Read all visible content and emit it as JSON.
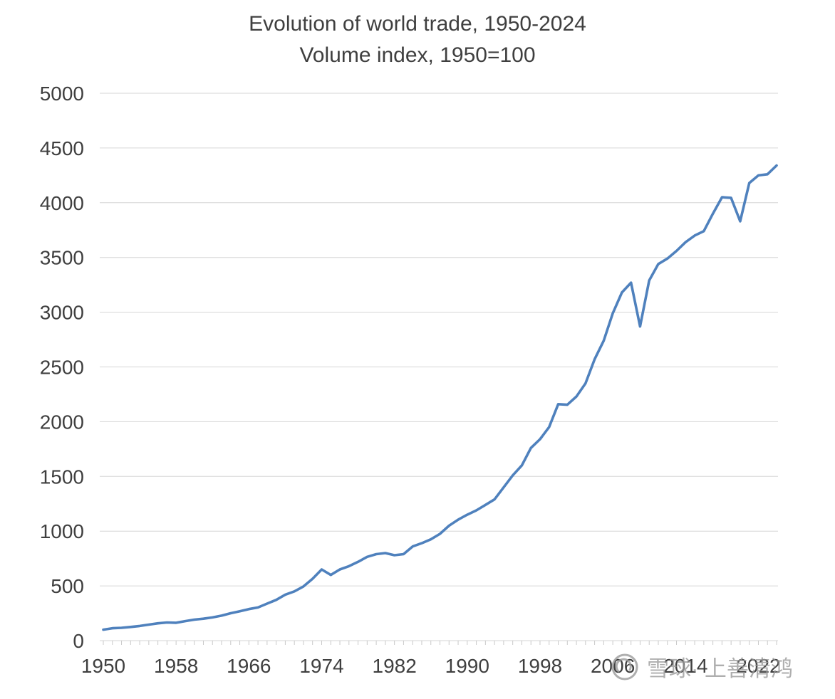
{
  "chart_data": {
    "type": "line",
    "title": "Evolution of world trade, 1950-2024",
    "subtitle": "Volume index, 1950=100",
    "xlabel": "",
    "ylabel": "",
    "ylim": [
      0,
      5000
    ],
    "y_ticks": [
      0,
      500,
      1000,
      1500,
      2000,
      2500,
      3000,
      3500,
      4000,
      4500,
      5000
    ],
    "x_tick_labels": [
      "1950",
      "1958",
      "1966",
      "1974",
      "1982",
      "1990",
      "1998",
      "2006",
      "2014",
      "2022"
    ],
    "grid": true,
    "legend": "none",
    "years": [
      1950,
      1951,
      1952,
      1953,
      1954,
      1955,
      1956,
      1957,
      1958,
      1959,
      1960,
      1961,
      1962,
      1963,
      1964,
      1965,
      1966,
      1967,
      1968,
      1969,
      1970,
      1971,
      1972,
      1973,
      1974,
      1975,
      1976,
      1977,
      1978,
      1979,
      1980,
      1981,
      1982,
      1983,
      1984,
      1985,
      1986,
      1987,
      1988,
      1989,
      1990,
      1991,
      1992,
      1993,
      1994,
      1995,
      1996,
      1997,
      1998,
      1999,
      2000,
      2001,
      2002,
      2003,
      2004,
      2005,
      2006,
      2007,
      2008,
      2009,
      2010,
      2011,
      2012,
      2013,
      2014,
      2015,
      2016,
      2017,
      2018,
      2019,
      2020,
      2021,
      2022,
      2023,
      2024
    ],
    "series": [
      {
        "name": "World trade volume index (1950=100)",
        "color": "#4f81bd",
        "values": [
          100,
          113,
          117,
          125,
          134,
          146,
          158,
          166,
          163,
          178,
          192,
          200,
          212,
          228,
          250,
          268,
          288,
          303,
          338,
          372,
          420,
          450,
          495,
          565,
          650,
          600,
          650,
          680,
          720,
          765,
          790,
          800,
          780,
          790,
          860,
          890,
          925,
          975,
          1050,
          1105,
          1150,
          1190,
          1240,
          1290,
          1400,
          1510,
          1600,
          1760,
          1840,
          1950,
          2160,
          2155,
          2230,
          2350,
          2570,
          2740,
          2990,
          3180,
          3270,
          2870,
          3290,
          3440,
          3490,
          3560,
          3640,
          3700,
          3740,
          3900,
          4050,
          4045,
          3830,
          4180,
          4250,
          4260,
          4340
        ]
      }
    ]
  },
  "colors": {
    "line": "#4f81bd",
    "grid": "#d6d6d6",
    "tick": "#c9c9c9",
    "axis_text": "#3f3f3f",
    "title_text": "#3f3f3f"
  },
  "watermark": {
    "text": "雪球· 上善清鸿",
    "color": "#9a9a9a"
  }
}
